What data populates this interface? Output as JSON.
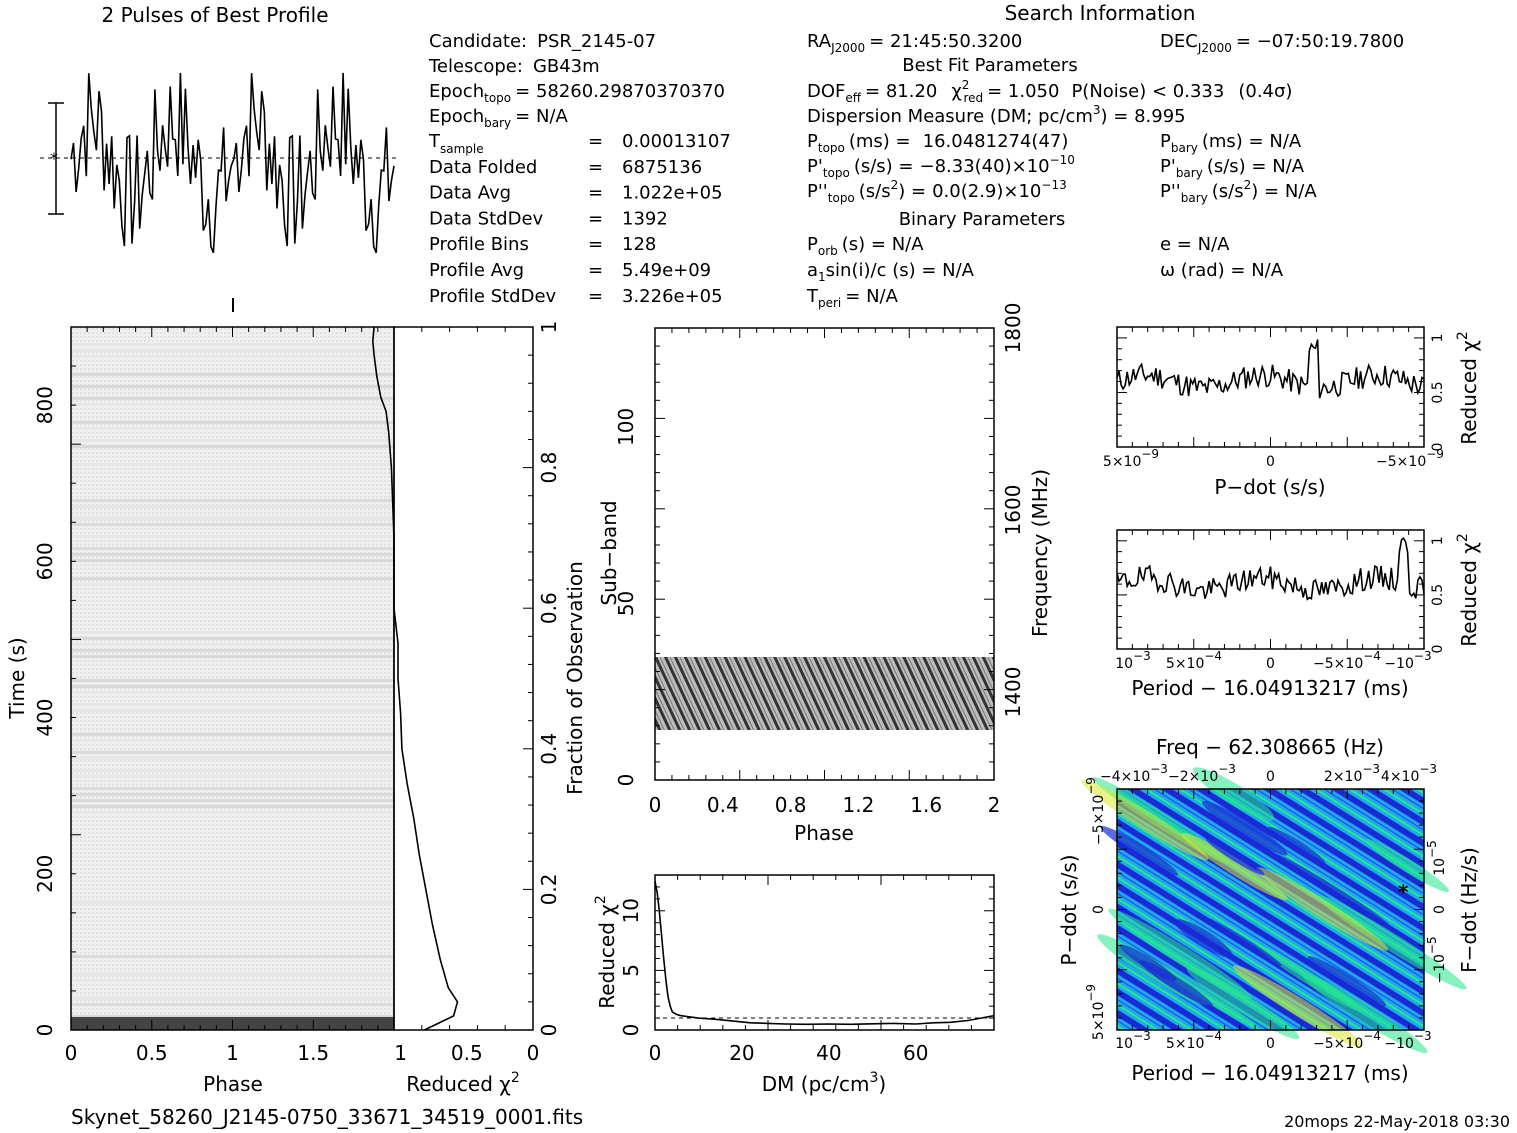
{
  "profile": {
    "title": "2 Pulses of Best Profile"
  },
  "info": {
    "search_title": "Search Information",
    "candidate_label": "Candidate:",
    "candidate": "PSR_2145-07",
    "telescope_label": "Telescope:",
    "telescope": "GB43m",
    "epoch_topo_label": "Epoch",
    "epoch_topo_sub": "topo",
    "epoch_topo": "= 58260.29870370370",
    "epoch_bary_label": "Epoch",
    "epoch_bary_sub": "bary",
    "epoch_bary": "= N/A",
    "left_rows": [
      {
        "label": "T",
        "sub": "sample",
        "eq": "=",
        "value": "0.00013107"
      },
      {
        "label": "Data Folded",
        "sub": "",
        "eq": "=",
        "value": "6875136"
      },
      {
        "label": "Data Avg",
        "sub": "",
        "eq": "=",
        "value": "1.022e+05"
      },
      {
        "label": "Data StdDev",
        "sub": "",
        "eq": "=",
        "value": "1392"
      },
      {
        "label": "Profile Bins",
        "sub": "",
        "eq": "=",
        "value": "128"
      },
      {
        "label": "Profile Avg",
        "sub": "",
        "eq": "=",
        "value": "5.49e+09"
      },
      {
        "label": "Profile StdDev",
        "sub": "",
        "eq": "=",
        "value": "3.226e+05"
      }
    ],
    "ra_label": "RA",
    "ra_sub": "J2000",
    "ra": "= 21:45:50.3200",
    "dec_label": "DEC",
    "dec_sub": "J2000",
    "dec": "= −07:50:19.7800",
    "best_fit_title": "Best Fit Parameters",
    "dof_label": "DOF",
    "dof_sub": "eff",
    "dof": "= 81.20",
    "chi_label": "χ",
    "chi_sup": "2",
    "chi_sub": "red",
    "chi": "= 1.050",
    "pnoise": "P(Noise) < 0.333",
    "sigma": "(0.4σ)",
    "dm_text": "Dispersion Measure (DM; pc/cm",
    "dm_sup": "3",
    "dm_value": ") = 8.995",
    "ptopo_label": "P",
    "ptopo_sub": "topo",
    "ptopo_unit": "(ms) =",
    "ptopo": "16.0481274(47)",
    "pdtopo_label": "P'",
    "pdtopo_sub": "topo",
    "pdtopo_unit": "(s/s) =",
    "pdtopo": "−8.33(40)×10",
    "pdtopo_exp": "−10",
    "pddtopo_label": "P''",
    "pddtopo_sub": "topo",
    "pddtopo_unit": "(s/s",
    "pddtopo_unit_sup": "2",
    "pddtopo_unit_end": ") =",
    "pddtopo": "0.0(2.9)×10",
    "pddtopo_exp": "−13",
    "pbary_label": "P",
    "pbary_sub": "bary",
    "pbary": "(ms) = N/A",
    "pdbary_label": "P'",
    "pdbary_sub": "bary",
    "pdbary": "(s/s) = N/A",
    "pddbary_label": "P''",
    "pddbary_sub": "bary",
    "pddbary_unit": "(s/s",
    "pddbary_unit_sup": "2",
    "pddbary": ") = N/A",
    "binary_title": "Binary Parameters",
    "porb_label": "P",
    "porb_sub": "orb",
    "porb": "(s) = N/A",
    "asini_label": "a",
    "asini_sub": "1",
    "asini": "sin(i)/c (s) = N/A",
    "tperi_label": "T",
    "tperi_sub": "peri",
    "tperi": "= N/A",
    "ecc": "e = N/A",
    "omega": "ω (rad) = N/A"
  },
  "footer": {
    "filename": "Skynet_58260_J2145-0750_33671_34519_0001.fits",
    "stamp": "20mops 22-May-2018 03:30"
  },
  "chart_data": [
    {
      "type": "line",
      "name": "best-profile",
      "xlim": [
        0,
        2
      ]
    },
    {
      "type": "heatmap",
      "name": "time-vs-phase",
      "xlabel": "Phase",
      "ylabel": "Time (s)",
      "xlim": [
        0,
        2
      ],
      "ylim": [
        0,
        900
      ],
      "x_ticks": [
        "0",
        "0.5",
        "1",
        "1.5"
      ],
      "y_ticks": [
        "0",
        "200",
        "400",
        "600",
        "800"
      ]
    },
    {
      "type": "line",
      "name": "reduced-chi2-vs-fraction",
      "xlabel": "Reduced χ",
      "xlabel_sup": "2",
      "ylabel": "Fraction of Observation",
      "xlim": [
        1.05,
        0
      ],
      "ylim": [
        0,
        1
      ],
      "x_ticks": [
        "1",
        "0.5",
        "0"
      ],
      "y_ticks": [
        "0",
        "0.2",
        "0.4",
        "0.6",
        "0.8",
        "1"
      ],
      "fraction": [
        0.0,
        0.02,
        0.04,
        0.06,
        0.1,
        0.15,
        0.2,
        0.25,
        0.3,
        0.35,
        0.4,
        0.45,
        0.5,
        0.55,
        0.6,
        0.65,
        0.7,
        0.75,
        0.8,
        0.85,
        0.88,
        0.9,
        0.93,
        0.96,
        0.98,
        1.0
      ],
      "chi2": [
        0.82,
        0.6,
        0.57,
        0.64,
        0.7,
        0.76,
        0.81,
        0.86,
        0.9,
        0.95,
        0.99,
        1.0,
        1.02,
        1.02,
        1.05,
        1.05,
        1.05,
        1.06,
        1.07,
        1.09,
        1.11,
        1.15,
        1.18,
        1.2,
        1.21,
        1.2
      ]
    },
    {
      "type": "heatmap",
      "name": "subband-vs-phase",
      "xlabel": "Phase",
      "ylabel": "Sub−band",
      "y2label": "Frequency (MHz)",
      "xlim": [
        0,
        2
      ],
      "ylim": [
        0,
        128
      ],
      "x_ticks": [
        "0",
        "0.4",
        "0.8",
        "1.2",
        "1.6",
        "2"
      ],
      "y_ticks": [
        "0",
        "50",
        "100"
      ],
      "freq_ticks": [
        "1400",
        "1600",
        "1800"
      ],
      "band_range": [
        14,
        35
      ]
    },
    {
      "type": "line",
      "name": "reduced-chi2-vs-dm",
      "xlabel": "DM (pc/cm",
      "xlabel_sup": "3",
      "xlabel_end": ")",
      "ylabel": "Reduced χ",
      "ylabel_sup": "2",
      "xlim": [
        0,
        78
      ],
      "ylim": [
        0,
        13
      ],
      "x_ticks": [
        "0",
        "20",
        "40",
        "60"
      ],
      "y_ticks": [
        "0",
        "5",
        "10"
      ],
      "x": [
        0,
        0.5,
        1,
        1.5,
        2,
        2.5,
        3,
        3.5,
        4,
        5,
        6,
        8,
        10,
        14,
        18,
        22,
        26,
        30,
        35,
        40,
        45,
        50,
        55,
        60,
        64,
        68,
        72,
        75,
        78
      ],
      "y": [
        12.5,
        11.5,
        10.0,
        8.0,
        6.0,
        4.2,
        2.8,
        2.0,
        1.5,
        1.3,
        1.2,
        1.1,
        1.0,
        0.9,
        0.75,
        0.6,
        0.55,
        0.5,
        0.48,
        0.5,
        0.48,
        0.52,
        0.55,
        0.5,
        0.6,
        0.65,
        0.8,
        1.0,
        1.2
      ]
    },
    {
      "type": "line",
      "name": "reduced-chi2-vs-pdot",
      "xlabel": "P−dot (s/s)",
      "ylabel": "Reduced χ",
      "ylabel_sup": "2",
      "x_ticks": [
        "5×10",
        "0",
        "−5×10"
      ],
      "x_tick_exp": "−9",
      "y_ticks": [
        "0",
        "0.5",
        "1"
      ],
      "ylim": [
        0,
        1.1
      ]
    },
    {
      "type": "line",
      "name": "reduced-chi2-vs-period",
      "xlabel": "Period − 16.04913217 (ms)",
      "ylabel": "Reduced χ",
      "ylabel_sup": "2",
      "x_ticks": [
        "10",
        "5×10",
        "0",
        "−5×10",
        "−10"
      ],
      "x_tick_exps": [
        "−3",
        "−4",
        "",
        "−4",
        "−3"
      ],
      "y_ticks": [
        "0",
        "0.5",
        "1"
      ],
      "ylim": [
        0,
        1.1
      ]
    },
    {
      "type": "heatmap",
      "name": "period-pdot-plane",
      "title": "Freq − 62.308665 (Hz)",
      "xlabel": "Period − 16.04913217 (ms)",
      "ylabel": "P−dot (s/s)",
      "y2label": "F−dot (Hz/s)",
      "top_ticks": [
        "−4×10",
        "−2×10",
        "0",
        "2×10",
        "4×10"
      ],
      "top_tick_exps": [
        "−3",
        "−3",
        "",
        "−3",
        "−3"
      ],
      "bottom_ticks": [
        "10",
        "5×10",
        "0",
        "−5×10",
        "−10"
      ],
      "bottom_tick_exps": [
        "−3",
        "−4",
        "",
        "−4",
        "−3"
      ],
      "left_ticks": [
        "−5×10",
        "0",
        "5×10"
      ],
      "left_tick_exps": [
        "−9",
        "",
        "−9"
      ],
      "right_ticks": [
        "10",
        "0",
        "−10"
      ],
      "right_tick_exps": [
        "−5",
        "",
        "−5"
      ],
      "colors": {
        "low": "#1a2bd6",
        "mid": "#1fa8f0",
        "high": "#25e88a",
        "peak": "#d8e830"
      }
    }
  ]
}
